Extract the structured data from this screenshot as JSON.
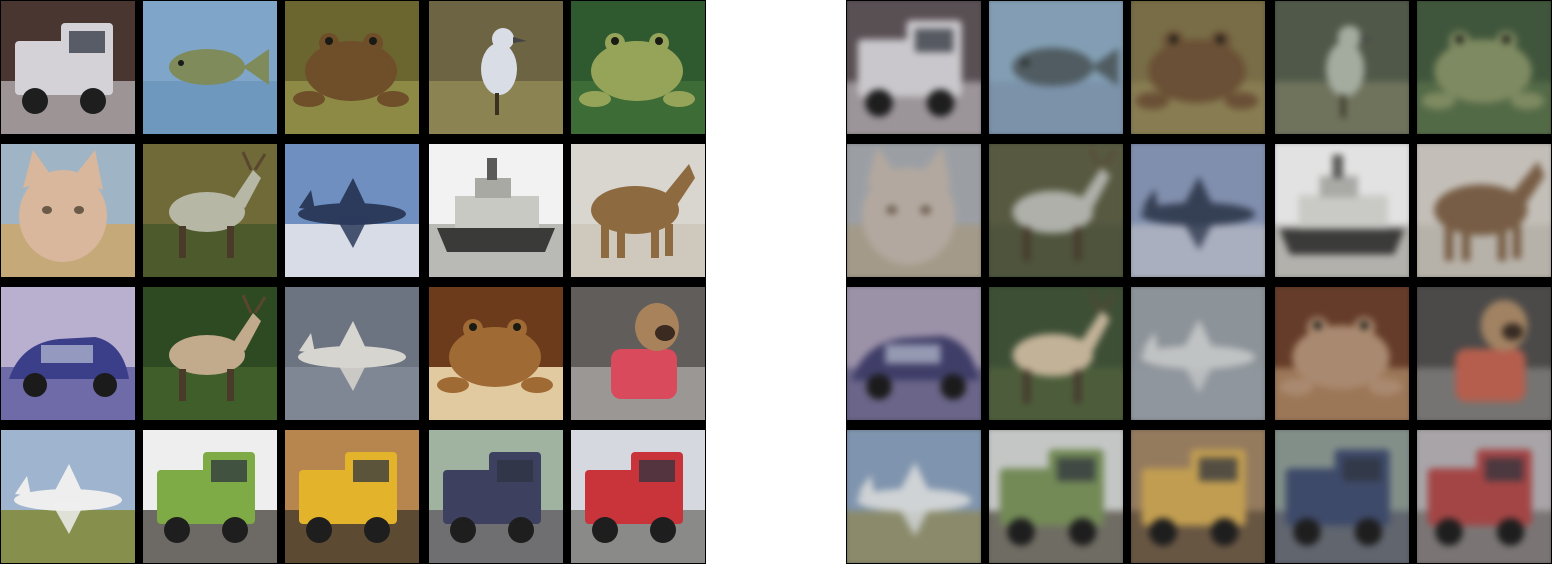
{
  "grids": [
    {
      "name": "original-images",
      "tiles": [
        {
          "subject": "truck",
          "sky": "#4a3630",
          "ground": "#9d9495",
          "fg": "#d4d2d6"
        },
        {
          "subject": "fish",
          "sky": "#7fa5c9",
          "ground": "#6f98bf",
          "fg": "#7f8b5a"
        },
        {
          "subject": "frog",
          "sky": "#6b6530",
          "ground": "#8c8a44",
          "fg": "#6f4e2a"
        },
        {
          "subject": "bird",
          "sky": "#6d6443",
          "ground": "#8b8452",
          "fg": "#d8dde6"
        },
        {
          "subject": "frog",
          "sky": "#2f5a30",
          "ground": "#3e6c37",
          "fg": "#96a45a"
        },
        {
          "subject": "cat",
          "sky": "#9fb5c6",
          "ground": "#c6a978",
          "fg": "#d8b79c"
        },
        {
          "subject": "deer",
          "sky": "#6f6a38",
          "ground": "#4d5b2c",
          "fg": "#b7b7a6"
        },
        {
          "subject": "airplane",
          "sky": "#6e8fc0",
          "ground": "#d8dce6",
          "fg": "#2c3b5c"
        },
        {
          "subject": "ship",
          "sky": "#f2f2f2",
          "ground": "#b9b9b5",
          "fg": "#3a3a38"
        },
        {
          "subject": "horse",
          "sky": "#d9d6cf",
          "ground": "#cfc9bd",
          "fg": "#8e6a40"
        },
        {
          "subject": "automobile",
          "sky": "#b9b0cf",
          "ground": "#6f6aa8",
          "fg": "#3b3f8a"
        },
        {
          "subject": "deer",
          "sky": "#2e4a22",
          "ground": "#3f5e2a",
          "fg": "#c2aa8c"
        },
        {
          "subject": "airplane",
          "sky": "#6d7481",
          "ground": "#7f8794",
          "fg": "#d7d5cf"
        },
        {
          "subject": "frog",
          "sky": "#6c3b1c",
          "ground": "#e2caa0",
          "fg": "#a06a34"
        },
        {
          "subject": "dog",
          "sky": "#605d5a",
          "ground": "#9a9794",
          "fg": "#d94a5c"
        },
        {
          "subject": "airplane",
          "sky": "#9fb5cf",
          "ground": "#86904c",
          "fg": "#eeeeee"
        },
        {
          "subject": "truck",
          "sky": "#eeeeee",
          "ground": "#6d6a65",
          "fg": "#7eab45"
        },
        {
          "subject": "truck",
          "sky": "#b7864f",
          "ground": "#5d4a32",
          "fg": "#e3b32c"
        },
        {
          "subject": "truck",
          "sky": "#9fb3a0",
          "ground": "#6f6e70",
          "fg": "#3e4060"
        },
        {
          "subject": "truck",
          "sky": "#d6d8df",
          "ground": "#8a8a88",
          "fg": "#c8343a"
        }
      ]
    },
    {
      "name": "reconstructed-images",
      "tiles": [
        {
          "subject": "truck",
          "sky": "#5b4f55",
          "ground": "#9c949a",
          "fg": "#c9c7cc"
        },
        {
          "subject": "fish",
          "sky": "#7d9fba",
          "ground": "#7693b0",
          "fg": "#4d5d63"
        },
        {
          "subject": "frog",
          "sky": "#7b6d3c",
          "ground": "#8b7d48",
          "fg": "#704f2e"
        },
        {
          "subject": "bird",
          "sky": "#4f5a46",
          "ground": "#6e7457",
          "fg": "#a3ad9d"
        },
        {
          "subject": "frog",
          "sky": "#3c5837",
          "ground": "#4f6c40",
          "fg": "#7d8b58"
        },
        {
          "subject": "cat",
          "sky": "#9a9fa6",
          "ground": "#a59a84",
          "fg": "#b5a89c"
        },
        {
          "subject": "deer",
          "sky": "#585a3c",
          "ground": "#4d5637",
          "fg": "#aeb0a8"
        },
        {
          "subject": "airplane",
          "sky": "#7e8fb6",
          "ground": "#a8afc2",
          "fg": "#34405a"
        },
        {
          "subject": "ship",
          "sky": "#e2e2e2",
          "ground": "#b2b1ab",
          "fg": "#3b3b39"
        },
        {
          "subject": "horse",
          "sky": "#c4bfb6",
          "ground": "#b8b2a7",
          "fg": "#7d5c3e"
        },
        {
          "subject": "automobile",
          "sky": "#9d91ad",
          "ground": "#6a6491",
          "fg": "#3f3d72"
        },
        {
          "subject": "deer",
          "sky": "#3a5030",
          "ground": "#4a5f34",
          "fg": "#c6b291"
        },
        {
          "subject": "airplane",
          "sky": "#8b939b",
          "ground": "#8e969f",
          "fg": "#c0c3c4"
        },
        {
          "subject": "frog",
          "sky": "#6d3a22",
          "ground": "#a4764e",
          "fg": "#b08868"
        },
        {
          "subject": "dog",
          "sky": "#4c4a48",
          "ground": "#767471",
          "fg": "#c65a45"
        },
        {
          "subject": "airplane",
          "sky": "#7a95b5",
          "ground": "#8b8c64",
          "fg": "#cfd3d6"
        },
        {
          "subject": "truck",
          "sky": "#c3c6c4",
          "ground": "#706d60",
          "fg": "#6f8c4b"
        },
        {
          "subject": "truck",
          "sky": "#9a7a56",
          "ground": "#6b553d",
          "fg": "#c99d3d"
        },
        {
          "subject": "truck",
          "sky": "#7f9088",
          "ground": "#5f6570",
          "fg": "#3b4a72"
        },
        {
          "subject": "truck",
          "sky": "#a9a4a8",
          "ground": "#7b7574",
          "fg": "#b64040"
        }
      ]
    }
  ]
}
